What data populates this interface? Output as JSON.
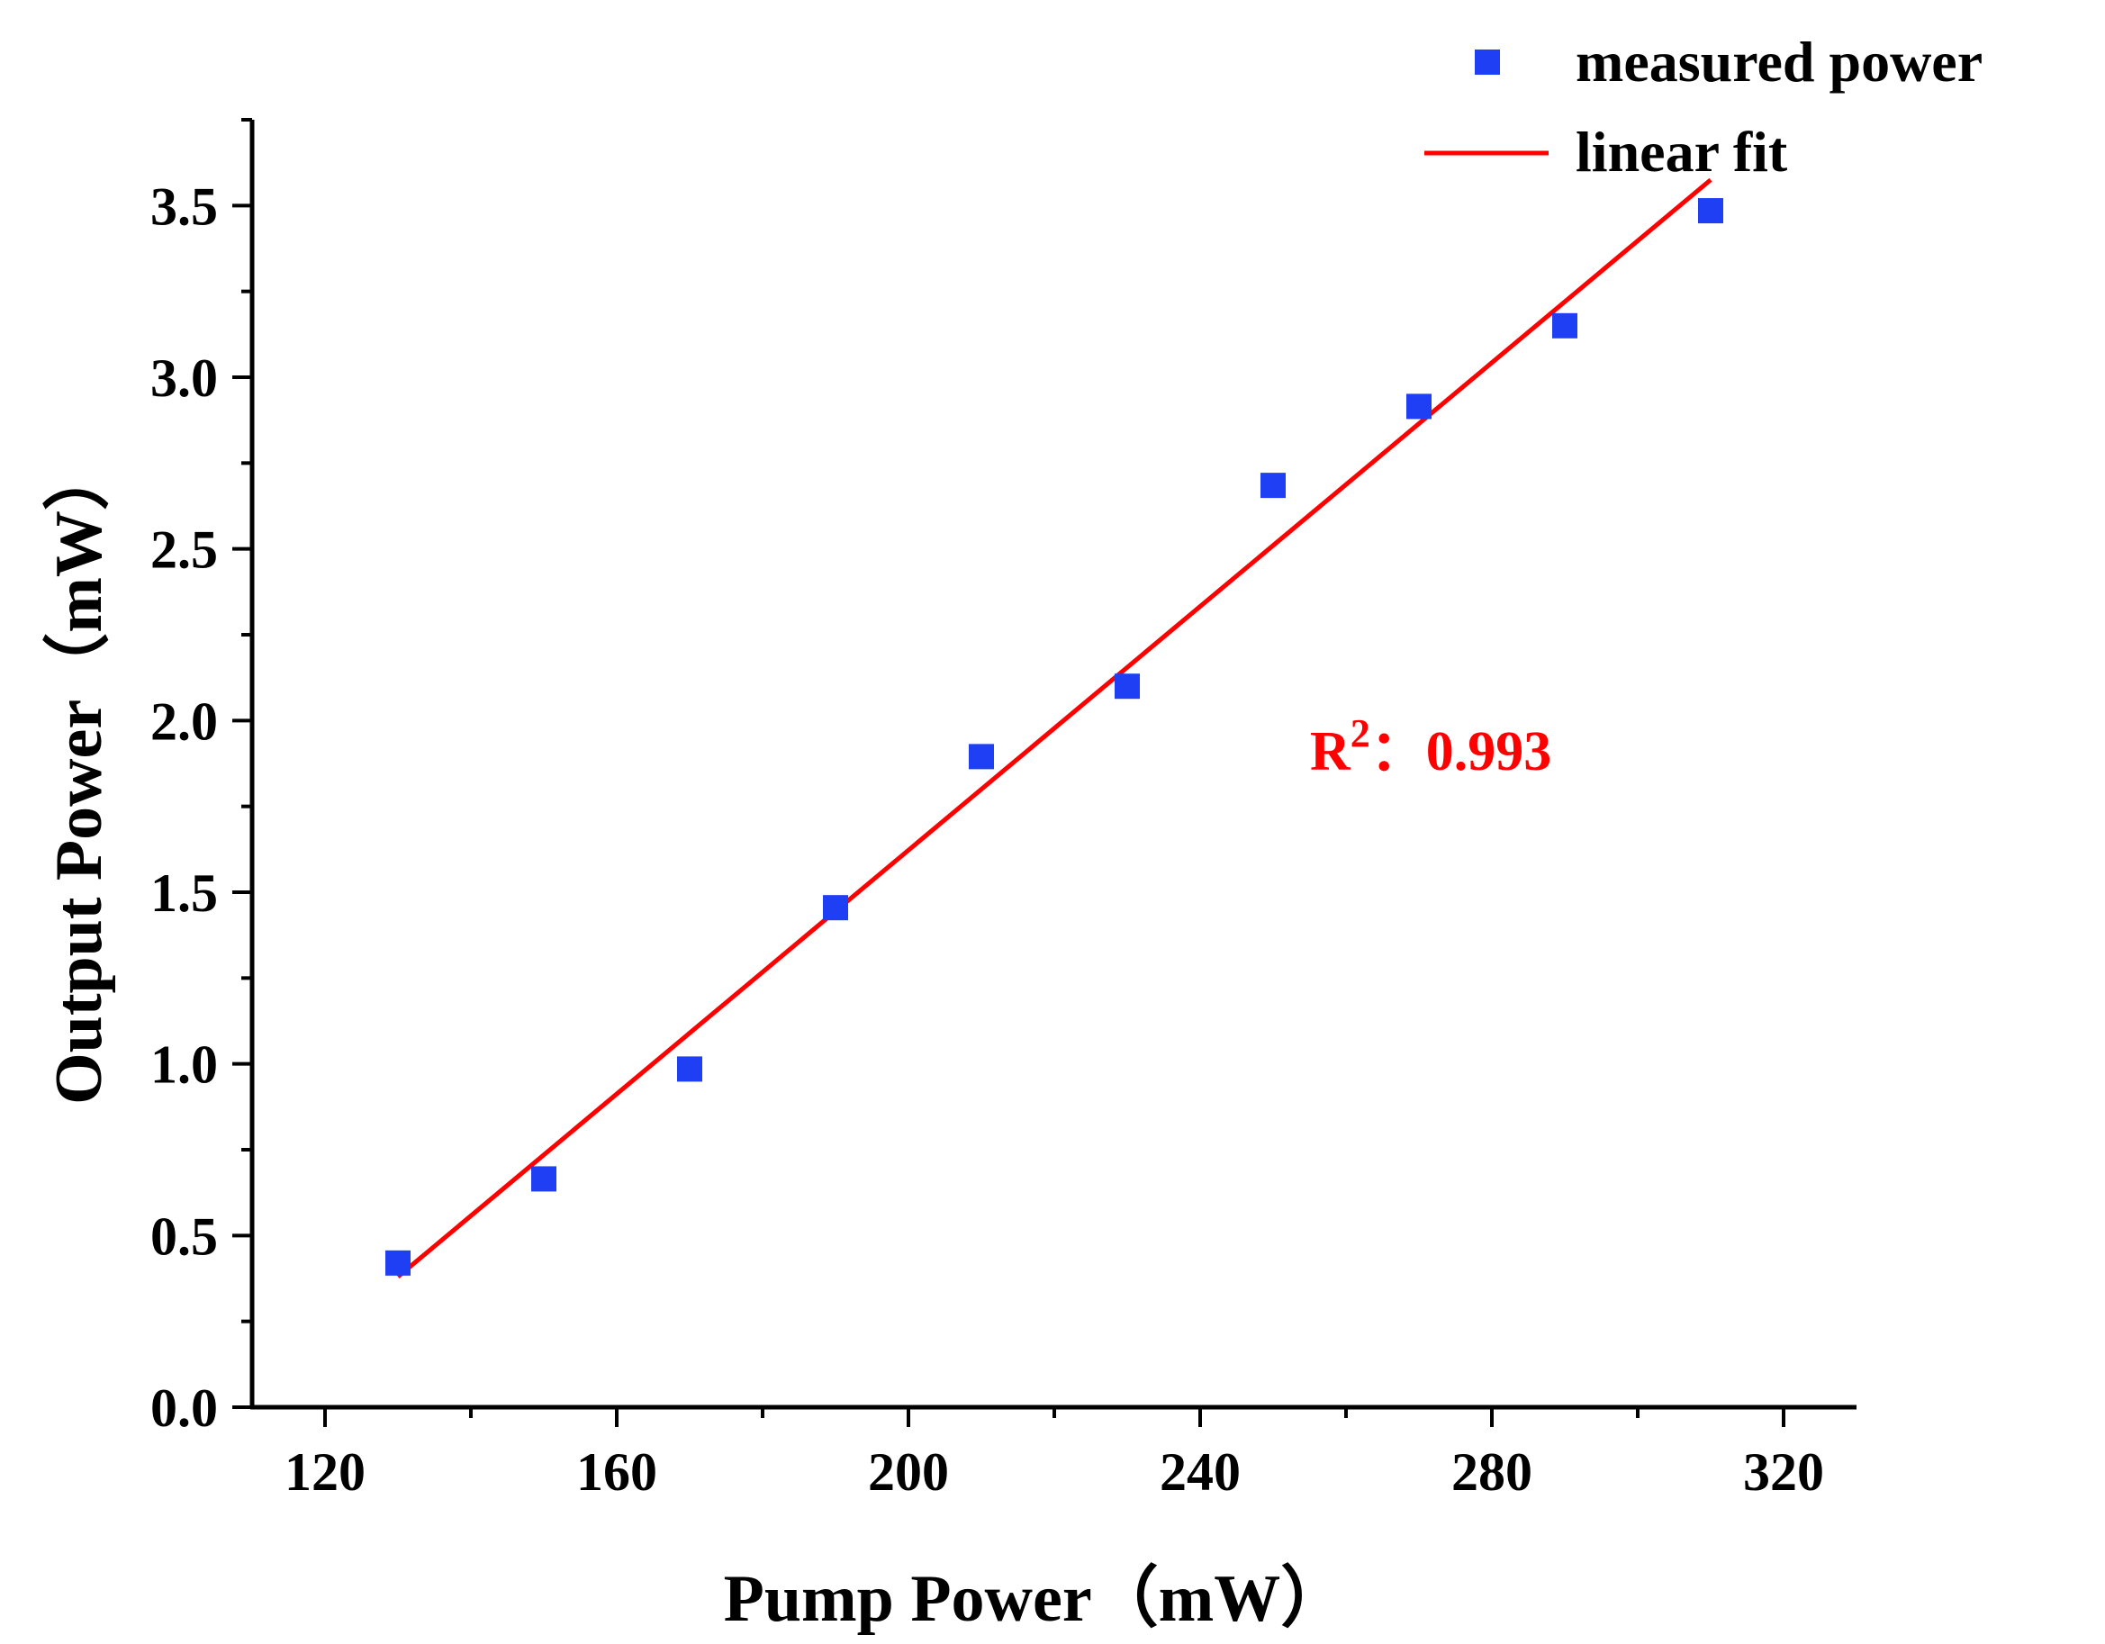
{
  "chart_data": {
    "type": "scatter",
    "title": "",
    "xlabel": "Pump Power（mW）",
    "ylabel": "Output Power（mW）",
    "xlim": [
      110,
      330
    ],
    "ylim": [
      0,
      3.75
    ],
    "xticks": [
      120,
      160,
      200,
      240,
      280,
      320
    ],
    "yticks": [
      0.0,
      0.5,
      1.0,
      1.5,
      2.0,
      2.5,
      3.0,
      3.5
    ],
    "series": [
      {
        "name": "measured power",
        "kind": "scatter",
        "marker": "square",
        "color": "#1f3ff5",
        "x": [
          130,
          150,
          170,
          190,
          210,
          230,
          250,
          270,
          290,
          310
        ],
        "y": [
          0.42,
          0.665,
          0.985,
          1.455,
          1.895,
          2.1,
          2.685,
          2.915,
          3.15,
          3.485
        ]
      },
      {
        "name": "linear fit",
        "kind": "line",
        "color": "#ff0000",
        "x": [
          130,
          310
        ],
        "y": [
          0.38,
          3.575
        ]
      }
    ],
    "legend": {
      "position": "top-right",
      "entries": [
        "measured power",
        "linear fit"
      ]
    },
    "annotation": {
      "r2_label": "R",
      "r2_sup": "2",
      "r2_sep": "：",
      "r2_value": "0.993",
      "color": "#ff0000"
    },
    "grid": false
  }
}
